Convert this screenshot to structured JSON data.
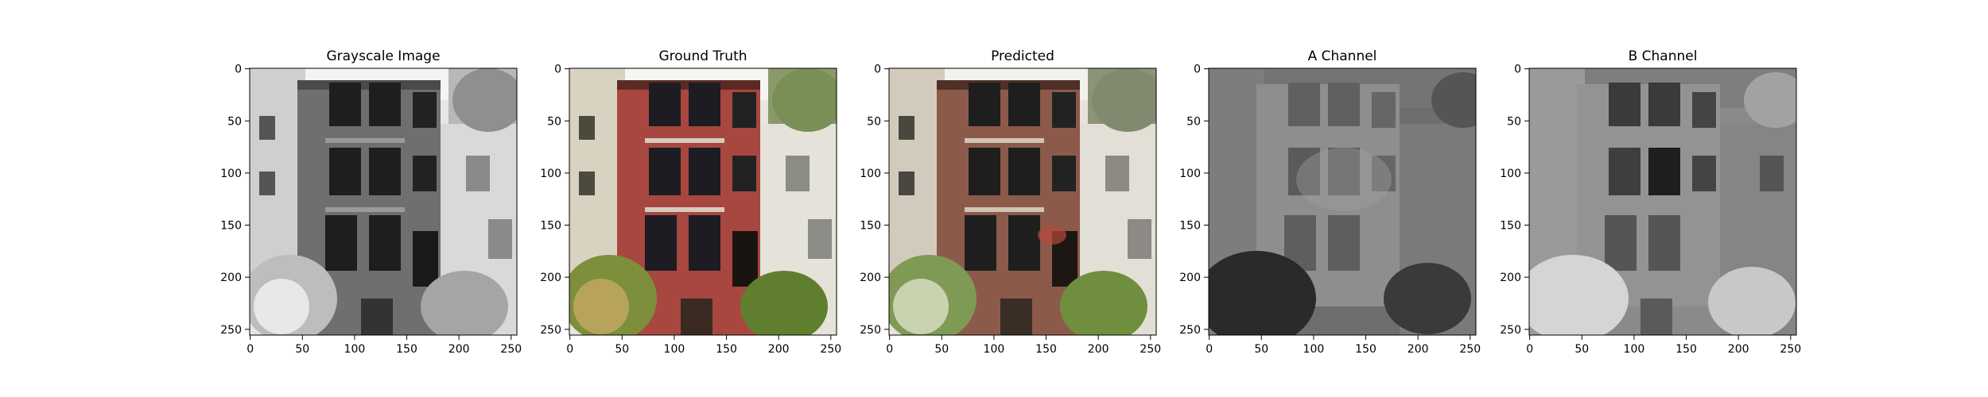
{
  "figure": {
    "panels": [
      {
        "title": "Grayscale Image",
        "content": "grayscale building photo",
        "x_ticks": [
          "0",
          "50",
          "100",
          "150",
          "200",
          "250"
        ],
        "y_ticks": [
          "0",
          "50",
          "100",
          "150",
          "200",
          "250"
        ]
      },
      {
        "title": "Ground Truth",
        "content": "color building photo",
        "x_ticks": [
          "0",
          "50",
          "100",
          "150",
          "200",
          "250"
        ],
        "y_ticks": [
          "0",
          "50",
          "100",
          "150",
          "200",
          "250"
        ]
      },
      {
        "title": "Predicted",
        "content": "predicted colorized building photo",
        "x_ticks": [
          "0",
          "50",
          "100",
          "150",
          "200",
          "250"
        ],
        "y_ticks": [
          "0",
          "50",
          "100",
          "150",
          "200",
          "250"
        ]
      },
      {
        "title": "A Channel",
        "content": "a channel map",
        "x_ticks": [
          "0",
          "50",
          "100",
          "150",
          "200",
          "250"
        ],
        "y_ticks": [
          "0",
          "50",
          "100",
          "150",
          "200",
          "250"
        ]
      },
      {
        "title": "B Channel",
        "content": "b channel map",
        "x_ticks": [
          "0",
          "50",
          "100",
          "150",
          "200",
          "250"
        ],
        "y_ticks": [
          "0",
          "50",
          "100",
          "150",
          "200",
          "250"
        ]
      }
    ],
    "colors": {
      "brick": "#a8473f",
      "brick_predicted": "#8c5a4a",
      "sky": "#f3f3f1",
      "foliage": "#6f8f3e",
      "gray_building": "#7a7a7a"
    }
  }
}
